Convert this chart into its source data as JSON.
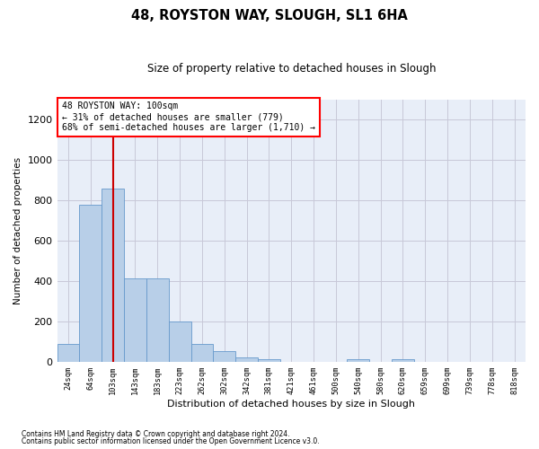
{
  "title": "48, ROYSTON WAY, SLOUGH, SL1 6HA",
  "subtitle": "Size of property relative to detached houses in Slough",
  "xlabel": "Distribution of detached houses by size in Slough",
  "ylabel": "Number of detached properties",
  "footer_line1": "Contains HM Land Registry data © Crown copyright and database right 2024.",
  "footer_line2": "Contains public sector information licensed under the Open Government Licence v3.0.",
  "annotation_line1": "48 ROYSTON WAY: 100sqm",
  "annotation_line2": "← 31% of detached houses are smaller (779)",
  "annotation_line3": "68% of semi-detached houses are larger (1,710) →",
  "bar_color": "#b8cfe8",
  "bar_edge_color": "#6699cc",
  "highlight_line_color": "#cc0000",
  "highlight_bar_index": 2,
  "categories": [
    "24sqm",
    "64sqm",
    "103sqm",
    "143sqm",
    "183sqm",
    "223sqm",
    "262sqm",
    "302sqm",
    "342sqm",
    "381sqm",
    "421sqm",
    "461sqm",
    "500sqm",
    "540sqm",
    "580sqm",
    "620sqm",
    "659sqm",
    "699sqm",
    "739sqm",
    "778sqm",
    "818sqm"
  ],
  "values": [
    90,
    780,
    860,
    415,
    415,
    200,
    88,
    52,
    22,
    15,
    0,
    0,
    0,
    13,
    0,
    13,
    0,
    0,
    0,
    0,
    0
  ],
  "ylim": [
    0,
    1300
  ],
  "yticks": [
    0,
    200,
    400,
    600,
    800,
    1000,
    1200
  ],
  "ax_facecolor": "#e8eef8",
  "background_color": "#ffffff",
  "grid_color": "#c8c8d8"
}
